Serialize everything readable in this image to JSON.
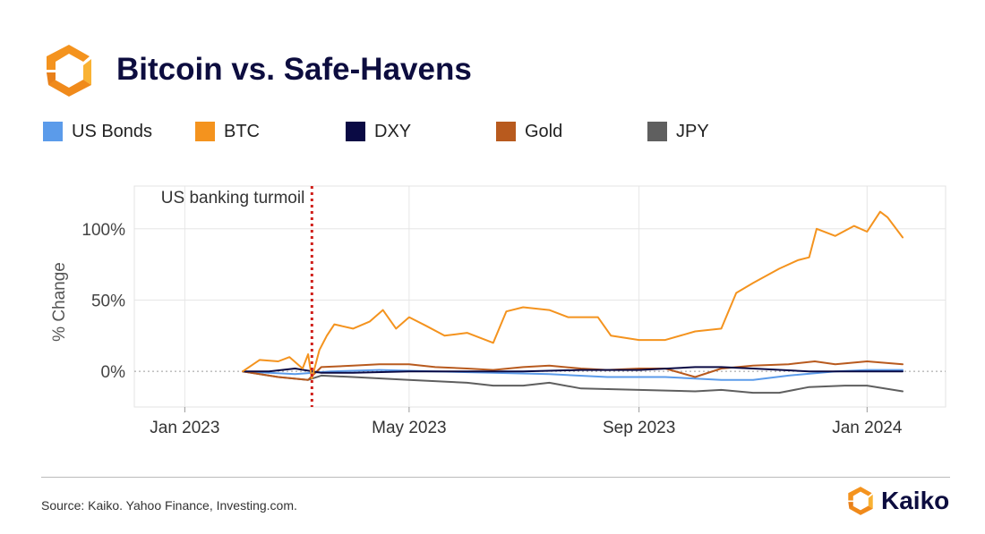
{
  "header": {
    "title": "Bitcoin vs. Safe-Havens",
    "logo_icon": "kaiko-logo-icon"
  },
  "colors": {
    "us_bonds": "#5b9bea",
    "btc": "#f4931e",
    "dxy": "#0a0a44",
    "gold": "#b85a1e",
    "jpy": "#5f5f5f",
    "annotation_line": "#d0201b",
    "brand_orange": "#f4931e"
  },
  "chart_data": {
    "type": "line",
    "ylabel": "% Change",
    "y_ticks": [
      "0%",
      "50%",
      "100%"
    ],
    "y_tick_values": [
      0,
      50,
      100
    ],
    "ylim": [
      -25,
      130
    ],
    "xlim": [
      "2022-12-05",
      "2024-02-12"
    ],
    "x_ticks": [
      "Jan 2023",
      "May 2023",
      "Sep 2023",
      "Jan 2024"
    ],
    "x_tick_dates": [
      "2023-01-01",
      "2023-05-01",
      "2023-09-01",
      "2024-01-01"
    ],
    "grid": true,
    "zero_line": "dotted",
    "legend_position": "top",
    "annotations": [
      {
        "text": "US banking turmoil",
        "date": "2023-03-10",
        "style": "dotted-vertical-line"
      }
    ],
    "series": [
      {
        "name": "US Bonds",
        "color": "#5b9bea",
        "points": [
          [
            "2023-02-01",
            0
          ],
          [
            "2023-03-01",
            -2
          ],
          [
            "2023-03-20",
            0
          ],
          [
            "2023-04-15",
            1
          ],
          [
            "2023-05-15",
            0
          ],
          [
            "2023-06-15",
            -1
          ],
          [
            "2023-07-15",
            -2
          ],
          [
            "2023-08-15",
            -4
          ],
          [
            "2023-09-15",
            -4
          ],
          [
            "2023-10-15",
            -6
          ],
          [
            "2023-11-01",
            -6
          ],
          [
            "2023-11-20",
            -3
          ],
          [
            "2023-12-15",
            0
          ],
          [
            "2024-01-01",
            1
          ],
          [
            "2024-01-20",
            1
          ]
        ]
      },
      {
        "name": "BTC",
        "color": "#f4931e",
        "points": [
          [
            "2023-02-01",
            0
          ],
          [
            "2023-02-10",
            8
          ],
          [
            "2023-02-20",
            7
          ],
          [
            "2023-02-26",
            10
          ],
          [
            "2023-03-05",
            2
          ],
          [
            "2023-03-08",
            12
          ],
          [
            "2023-03-10",
            -5
          ],
          [
            "2023-03-14",
            15
          ],
          [
            "2023-03-18",
            25
          ],
          [
            "2023-03-22",
            33
          ],
          [
            "2023-04-01",
            30
          ],
          [
            "2023-04-10",
            35
          ],
          [
            "2023-04-17",
            43
          ],
          [
            "2023-04-24",
            30
          ],
          [
            "2023-05-01",
            38
          ],
          [
            "2023-05-10",
            32
          ],
          [
            "2023-05-20",
            25
          ],
          [
            "2023-06-01",
            27
          ],
          [
            "2023-06-15",
            20
          ],
          [
            "2023-06-22",
            42
          ],
          [
            "2023-07-01",
            45
          ],
          [
            "2023-07-15",
            43
          ],
          [
            "2023-07-25",
            38
          ],
          [
            "2023-08-10",
            38
          ],
          [
            "2023-08-17",
            25
          ],
          [
            "2023-09-01",
            22
          ],
          [
            "2023-09-15",
            22
          ],
          [
            "2023-10-01",
            28
          ],
          [
            "2023-10-15",
            30
          ],
          [
            "2023-10-23",
            55
          ],
          [
            "2023-11-01",
            62
          ],
          [
            "2023-11-15",
            72
          ],
          [
            "2023-11-25",
            78
          ],
          [
            "2023-12-01",
            80
          ],
          [
            "2023-12-05",
            100
          ],
          [
            "2023-12-15",
            95
          ],
          [
            "2023-12-25",
            102
          ],
          [
            "2024-01-01",
            98
          ],
          [
            "2024-01-08",
            112
          ],
          [
            "2024-01-12",
            108
          ],
          [
            "2024-01-20",
            94
          ]
        ]
      },
      {
        "name": "DXY",
        "color": "#0a0a44",
        "points": [
          [
            "2023-02-01",
            0
          ],
          [
            "2023-02-15",
            0
          ],
          [
            "2023-03-01",
            2
          ],
          [
            "2023-03-15",
            -1
          ],
          [
            "2023-04-01",
            -1
          ],
          [
            "2023-05-01",
            0
          ],
          [
            "2023-06-01",
            0
          ],
          [
            "2023-07-01",
            0
          ],
          [
            "2023-08-01",
            1
          ],
          [
            "2023-09-01",
            1
          ],
          [
            "2023-10-01",
            3
          ],
          [
            "2023-10-15",
            3
          ],
          [
            "2023-11-01",
            2
          ],
          [
            "2023-12-01",
            0
          ],
          [
            "2024-01-01",
            0
          ],
          [
            "2024-01-20",
            0
          ]
        ]
      },
      {
        "name": "Gold",
        "color": "#b85a1e",
        "points": [
          [
            "2023-02-01",
            0
          ],
          [
            "2023-02-20",
            -4
          ],
          [
            "2023-03-08",
            -6
          ],
          [
            "2023-03-15",
            3
          ],
          [
            "2023-04-01",
            4
          ],
          [
            "2023-04-15",
            5
          ],
          [
            "2023-05-01",
            5
          ],
          [
            "2023-05-15",
            3
          ],
          [
            "2023-06-01",
            2
          ],
          [
            "2023-06-15",
            1
          ],
          [
            "2023-07-01",
            3
          ],
          [
            "2023-07-15",
            4
          ],
          [
            "2023-08-01",
            2
          ],
          [
            "2023-08-15",
            1
          ],
          [
            "2023-09-01",
            2
          ],
          [
            "2023-09-15",
            2
          ],
          [
            "2023-10-01",
            -4
          ],
          [
            "2023-10-15",
            2
          ],
          [
            "2023-11-01",
            4
          ],
          [
            "2023-11-20",
            5
          ],
          [
            "2023-12-04",
            7
          ],
          [
            "2023-12-15",
            5
          ],
          [
            "2024-01-01",
            7
          ],
          [
            "2024-01-20",
            5
          ]
        ]
      },
      {
        "name": "JPY",
        "color": "#5f5f5f",
        "points": [
          [
            "2023-02-01",
            0
          ],
          [
            "2023-02-20",
            -4
          ],
          [
            "2023-03-08",
            -6
          ],
          [
            "2023-03-15",
            -3
          ],
          [
            "2023-04-01",
            -4
          ],
          [
            "2023-05-01",
            -6
          ],
          [
            "2023-06-01",
            -8
          ],
          [
            "2023-06-15",
            -10
          ],
          [
            "2023-07-01",
            -10
          ],
          [
            "2023-07-15",
            -8
          ],
          [
            "2023-08-01",
            -12
          ],
          [
            "2023-09-01",
            -13
          ],
          [
            "2023-10-01",
            -14
          ],
          [
            "2023-10-15",
            -13
          ],
          [
            "2023-11-01",
            -15
          ],
          [
            "2023-11-15",
            -15
          ],
          [
            "2023-12-01",
            -11
          ],
          [
            "2023-12-20",
            -10
          ],
          [
            "2024-01-01",
            -10
          ],
          [
            "2024-01-20",
            -14
          ]
        ]
      }
    ]
  },
  "footer": {
    "source": "Source: Kaiko. Yahoo Finance, Investing.com.",
    "brand": "Kaiko",
    "brand_icon": "kaiko-logo-icon"
  }
}
